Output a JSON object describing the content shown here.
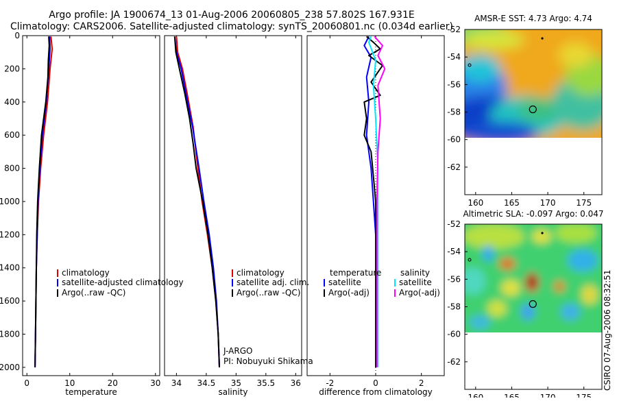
{
  "header": {
    "title_line1": "Argo profile: JA 1900674_13 01-Aug-2006 20060805_238 57.802S 167.931E",
    "title_line2": "Climatology: CARS2006. Satellite-adjusted climatology: synTS_20060801.nc (0.034d earlier)"
  },
  "footer": {
    "vertical_text": "CSIRO 07-Aug-2006 08:32:51"
  },
  "colors": {
    "red": "#e00000",
    "blue": "#0000ff",
    "black": "#000000",
    "cyan": "#00e8ff",
    "magenta": "#ff00ff"
  },
  "chart_data": [
    {
      "type": "line",
      "id": "temperature",
      "xlabel": "temperature",
      "xlim": [
        -1,
        31
      ],
      "ylim": [
        2050,
        0
      ],
      "xticks": [
        0,
        10,
        20,
        30
      ],
      "yticks": [
        0,
        200,
        400,
        600,
        800,
        1000,
        1200,
        1400,
        1600,
        1800,
        2000
      ],
      "legend": [
        {
          "label": "climatology",
          "color": "red"
        },
        {
          "label": "satellite-adjusted climatology",
          "color": "blue"
        },
        {
          "label": "Argo(..raw -QC)",
          "color": "black"
        }
      ],
      "series": [
        {
          "color": "red",
          "points": [
            [
              5.6,
              5
            ],
            [
              5.9,
              80
            ],
            [
              5.4,
              200
            ],
            [
              4.8,
              400
            ],
            [
              3.9,
              600
            ],
            [
              3.2,
              800
            ],
            [
              2.7,
              1000
            ],
            [
              2.4,
              1200
            ],
            [
              2.2,
              1400
            ],
            [
              2.1,
              1600
            ],
            [
              2.0,
              1800
            ],
            [
              1.9,
              2000
            ]
          ]
        },
        {
          "color": "blue",
          "points": [
            [
              5.3,
              5
            ],
            [
              5.4,
              80
            ],
            [
              5.1,
              200
            ],
            [
              4.5,
              400
            ],
            [
              3.6,
              600
            ],
            [
              3.0,
              800
            ],
            [
              2.6,
              1000
            ],
            [
              2.4,
              1200
            ],
            [
              2.2,
              1400
            ],
            [
              2.1,
              1600
            ],
            [
              2.0,
              1800
            ],
            [
              1.9,
              2000
            ]
          ]
        },
        {
          "color": "black",
          "points": [
            [
              5.1,
              5
            ],
            [
              5.2,
              60
            ],
            [
              5.0,
              150
            ],
            [
              4.9,
              250
            ],
            [
              4.4,
              400
            ],
            [
              3.4,
              600
            ],
            [
              2.9,
              800
            ],
            [
              2.5,
              1000
            ],
            [
              2.3,
              1200
            ],
            [
              2.2,
              1400
            ],
            [
              2.1,
              1600
            ],
            [
              2.0,
              1800
            ],
            [
              1.9,
              2000
            ]
          ]
        }
      ]
    },
    {
      "type": "line",
      "id": "salinity",
      "xlabel": "salinity",
      "xlim": [
        33.8,
        36.1
      ],
      "ylim": [
        2050,
        0
      ],
      "xticks": [
        34,
        34.5,
        35,
        35.5,
        36
      ],
      "legend": [
        {
          "label": "climatology",
          "color": "red"
        },
        {
          "label": "satellite adj. clim.",
          "color": "blue"
        },
        {
          "label": "Argo(..raw -QC)",
          "color": "black"
        }
      ],
      "annotations": [
        "J-ARGO",
        "PI: Nobuyuki Shikama"
      ],
      "series": [
        {
          "color": "red",
          "points": [
            [
              34.0,
              5
            ],
            [
              34.02,
              100
            ],
            [
              34.1,
              200
            ],
            [
              34.18,
              350
            ],
            [
              34.28,
              550
            ],
            [
              34.36,
              800
            ],
            [
              34.43,
              1000
            ],
            [
              34.52,
              1200
            ],
            [
              34.6,
              1400
            ],
            [
              34.66,
              1600
            ],
            [
              34.7,
              1800
            ],
            [
              34.72,
              2000
            ]
          ]
        },
        {
          "color": "blue",
          "points": [
            [
              33.97,
              5
            ],
            [
              34.0,
              100
            ],
            [
              34.08,
              200
            ],
            [
              34.16,
              350
            ],
            [
              34.27,
              550
            ],
            [
              34.38,
              800
            ],
            [
              34.46,
              1000
            ],
            [
              34.55,
              1200
            ],
            [
              34.62,
              1400
            ],
            [
              34.67,
              1600
            ],
            [
              34.7,
              1800
            ],
            [
              34.72,
              2000
            ]
          ]
        },
        {
          "color": "black",
          "points": [
            [
              33.97,
              5
            ],
            [
              33.99,
              100
            ],
            [
              34.05,
              200
            ],
            [
              34.14,
              350
            ],
            [
              34.22,
              500
            ],
            [
              34.28,
              650
            ],
            [
              34.33,
              800
            ],
            [
              34.44,
              1000
            ],
            [
              34.53,
              1200
            ],
            [
              34.6,
              1400
            ],
            [
              34.66,
              1600
            ],
            [
              34.7,
              1800
            ],
            [
              34.72,
              2000
            ]
          ]
        }
      ]
    },
    {
      "type": "line",
      "id": "difference",
      "xlabel": "difference from climatology",
      "xlim": [
        -3,
        3
      ],
      "ylim": [
        2050,
        0
      ],
      "xticks": [
        -2,
        0,
        2
      ],
      "legend": [
        {
          "label": "temperature",
          "color": ""
        },
        {
          "label": "satellite",
          "color": "blue"
        },
        {
          "label": "Argo(-adj)",
          "color": "black"
        },
        {
          "label": "salinity",
          "color": ""
        },
        {
          "label": "satellite",
          "color": "cyan"
        },
        {
          "label": "Argo(-adj)",
          "color": "magenta"
        }
      ],
      "series": [
        {
          "color": "blue",
          "points": [
            [
              -0.3,
              5
            ],
            [
              -0.5,
              60
            ],
            [
              -0.2,
              130
            ],
            [
              -0.4,
              250
            ],
            [
              -0.3,
              400
            ],
            [
              -0.4,
              600
            ],
            [
              -0.2,
              800
            ],
            [
              -0.1,
              1000
            ],
            [
              0,
              1200
            ],
            [
              0,
              1600
            ],
            [
              0,
              2000
            ]
          ]
        },
        {
          "color": "black",
          "points": [
            [
              -0.4,
              5
            ],
            [
              -0.1,
              40
            ],
            [
              0.2,
              80
            ],
            [
              -0.3,
              120
            ],
            [
              0.3,
              180
            ],
            [
              -0.2,
              280
            ],
            [
              0.2,
              360
            ],
            [
              -0.5,
              400
            ],
            [
              -0.4,
              500
            ],
            [
              -0.5,
              600
            ],
            [
              -0.2,
              700
            ],
            [
              -0.1,
              850
            ],
            [
              0,
              1000
            ],
            [
              0,
              1200
            ],
            [
              0,
              1600
            ],
            [
              0,
              2000
            ]
          ]
        },
        {
          "color": "cyan",
          "points": [
            [
              -0.2,
              5
            ],
            [
              -0.3,
              40
            ],
            [
              0.0,
              150
            ],
            [
              -0.1,
              300
            ],
            [
              0.0,
              500
            ],
            [
              0.1,
              800
            ],
            [
              0.1,
              1000
            ],
            [
              0.1,
              1400
            ],
            [
              0.1,
              2000
            ]
          ]
        },
        {
          "color": "magenta",
          "points": [
            [
              -0.05,
              5
            ],
            [
              0.3,
              60
            ],
            [
              0.1,
              120
            ],
            [
              0.4,
              200
            ],
            [
              0.1,
              300
            ],
            [
              0.2,
              500
            ],
            [
              0.1,
              700
            ],
            [
              0.05,
              1000
            ],
            [
              0.05,
              1400
            ],
            [
              0.05,
              2000
            ]
          ]
        }
      ]
    },
    {
      "type": "heatmap",
      "id": "sst-map",
      "title": "AMSR-E SST: 4.73 Argo: 4.74",
      "xlim": [
        158.5,
        177.5
      ],
      "ylim": [
        -64,
        -52
      ],
      "xticks": [
        160,
        165,
        170,
        175
      ],
      "yticks": [
        -52,
        -54,
        -56,
        -58,
        -60,
        -62
      ],
      "argo_position": [
        167.931,
        -57.802
      ]
    },
    {
      "type": "heatmap",
      "id": "sla-map",
      "title": "Altimetric SLA: -0.097 Argo: 0.047",
      "xlim": [
        158.5,
        177.5
      ],
      "ylim": [
        -64,
        -52
      ],
      "xticks": [
        160,
        165,
        170,
        175
      ],
      "yticks": [
        -52,
        -54,
        -56,
        -58,
        -60,
        -62
      ],
      "argo_position": [
        167.931,
        -57.802
      ]
    }
  ]
}
